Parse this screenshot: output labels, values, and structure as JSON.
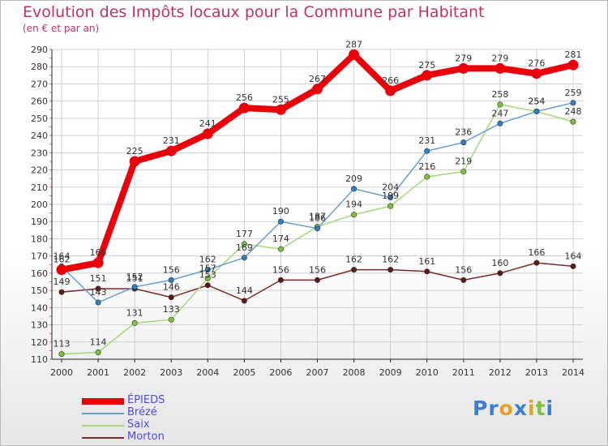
{
  "header": {
    "title": "Evolution des Impôts locaux pour la Commune par Habitant",
    "subtitle": "(en € et par an)"
  },
  "colors": {
    "title": "#c0306a",
    "legend_text": "#4a4af0",
    "grid": "#d0d0d0",
    "axis": "#222222"
  },
  "chart_data": {
    "type": "line",
    "title": "Evolution des Impôts locaux pour la Commune par Habitant",
    "subtitle": "(en € et par an)",
    "xlabel": "",
    "ylabel": "",
    "x": [
      2000,
      2001,
      2002,
      2003,
      2004,
      2005,
      2006,
      2007,
      2008,
      2009,
      2010,
      2011,
      2012,
      2013,
      2014
    ],
    "ylim": [
      110,
      290
    ],
    "yticks": [
      110,
      120,
      130,
      140,
      150,
      160,
      170,
      180,
      190,
      200,
      210,
      220,
      230,
      240,
      250,
      260,
      270,
      280,
      290
    ],
    "grid": true,
    "legend_position": "bottom-left",
    "series": [
      {
        "name": "ÉPIEDS",
        "color": "#e8000b",
        "marker": "#e8000b",
        "values": [
          162,
          166,
          225,
          231,
          241,
          256,
          255,
          267,
          287,
          266,
          275,
          279,
          279,
          276,
          281
        ]
      },
      {
        "name": "Brézé",
        "color": "#6a9fce",
        "marker": "#2f7fc0",
        "values": [
          164,
          143,
          152,
          156,
          162,
          169,
          190,
          186,
          209,
          204,
          231,
          236,
          247,
          254,
          259
        ]
      },
      {
        "name": "Saix",
        "color": "#a6d77a",
        "marker": "#7cc43c",
        "values": [
          113,
          114,
          131,
          133,
          157,
          177,
          174,
          187,
          194,
          199,
          216,
          219,
          258,
          254,
          248
        ]
      },
      {
        "name": "Morton",
        "color": "#7b2a2a",
        "marker": "#5a1a1a",
        "values": [
          149,
          151,
          151,
          146,
          153,
          144,
          156,
          156,
          162,
          162,
          161,
          156,
          160,
          166,
          164
        ]
      }
    ]
  },
  "logo": {
    "letters": [
      "P",
      "r",
      "o",
      "x",
      "i",
      "t",
      "i"
    ],
    "letter_colors": [
      "#3a7fd0",
      "#3a7fd0",
      "#e8a020",
      "#3a7fd0",
      "#e8a020",
      "#7cc43c",
      "#3a7fd0"
    ]
  }
}
